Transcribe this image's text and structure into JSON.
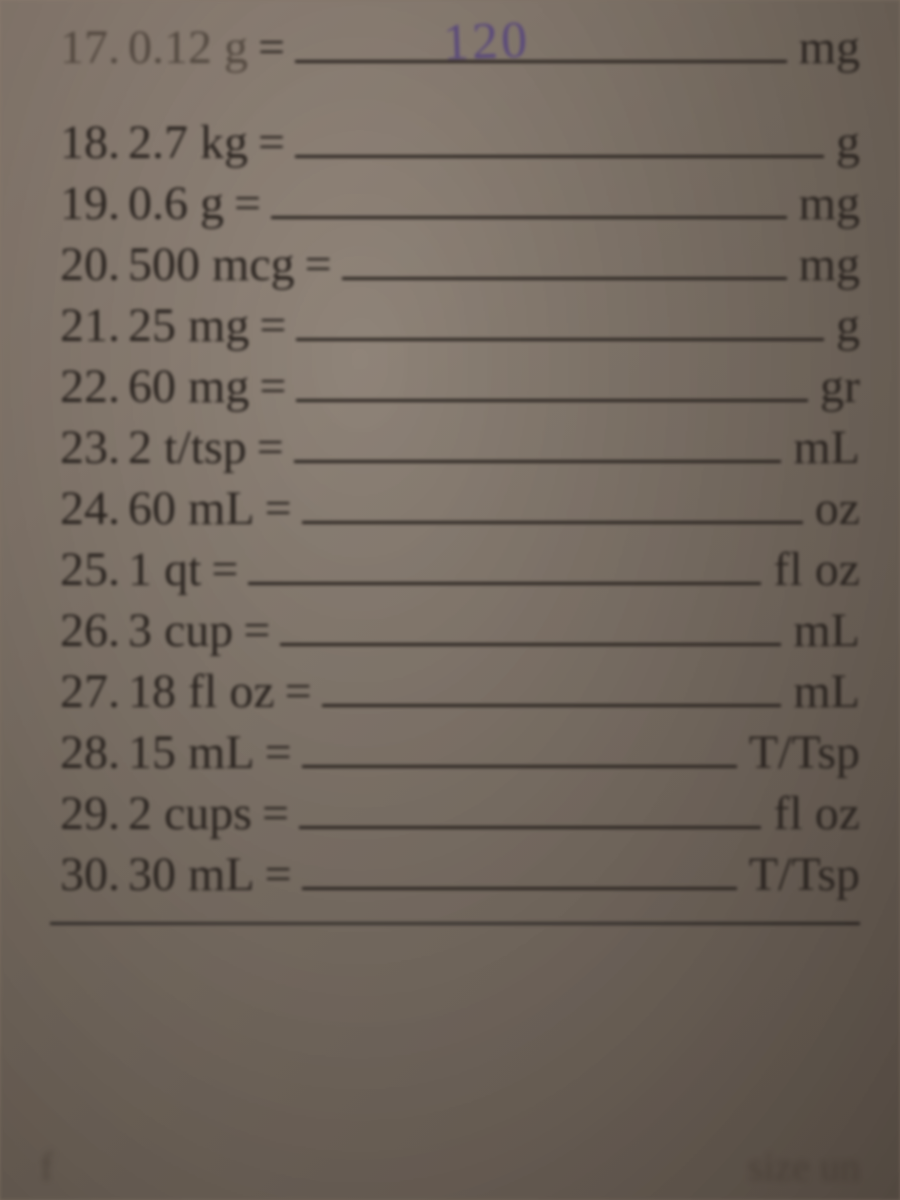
{
  "colors": {
    "paper_bg_start": "#8a7a6d",
    "paper_bg_end": "#6d6055",
    "text": "#2a2420",
    "handwritten": "#5a4a7a",
    "underline": "#2a2420"
  },
  "typography": {
    "body_fontsize": 48,
    "handwritten_fontsize": 52,
    "font_family": "Georgia, Times New Roman, serif",
    "handwritten_family": "Comic Sans MS, cursive"
  },
  "problems": [
    {
      "num": "17.",
      "value": "0.12 g",
      "equals": "=",
      "answer": "120",
      "unit": "mg",
      "top_row": true
    },
    {
      "num": "18.",
      "value": "2.7 kg",
      "equals": "=",
      "answer": "",
      "unit": "g"
    },
    {
      "num": "19.",
      "value": "0.6 g",
      "equals": "=",
      "answer": "",
      "unit": "mg"
    },
    {
      "num": "20.",
      "value": "500 mcg",
      "equals": "=",
      "answer": "",
      "unit": "mg"
    },
    {
      "num": "21.",
      "value": "25 mg",
      "equals": "=",
      "answer": "",
      "unit": "g"
    },
    {
      "num": "22.",
      "value": "60 mg",
      "equals": "=",
      "answer": "",
      "unit": "gr"
    },
    {
      "num": "23.",
      "value": "2 t/tsp",
      "equals": "=",
      "answer": "",
      "unit": "mL"
    },
    {
      "num": "24.",
      "value": "60 mL",
      "equals": "=",
      "answer": "",
      "unit": "oz"
    },
    {
      "num": "25.",
      "value": "1 qt",
      "equals": "=",
      "answer": "",
      "unit": "fl oz"
    },
    {
      "num": "26.",
      "value": "3 cup",
      "equals": "=",
      "answer": "",
      "unit": "mL"
    },
    {
      "num": "27.",
      "value": "18 fl oz",
      "equals": "=",
      "answer": "",
      "unit": "mL"
    },
    {
      "num": "28.",
      "value": "15 mL",
      "equals": "=",
      "answer": "",
      "unit": "T/Tsp"
    },
    {
      "num": "29.",
      "value": "2 cups",
      "equals": "=",
      "answer": "",
      "unit": "fl oz"
    },
    {
      "num": "30.",
      "value": "30 mL",
      "equals": "=",
      "answer": "",
      "unit": "T/Tsp"
    }
  ],
  "bottom_text_left": "f",
  "bottom_text_right": "size un"
}
